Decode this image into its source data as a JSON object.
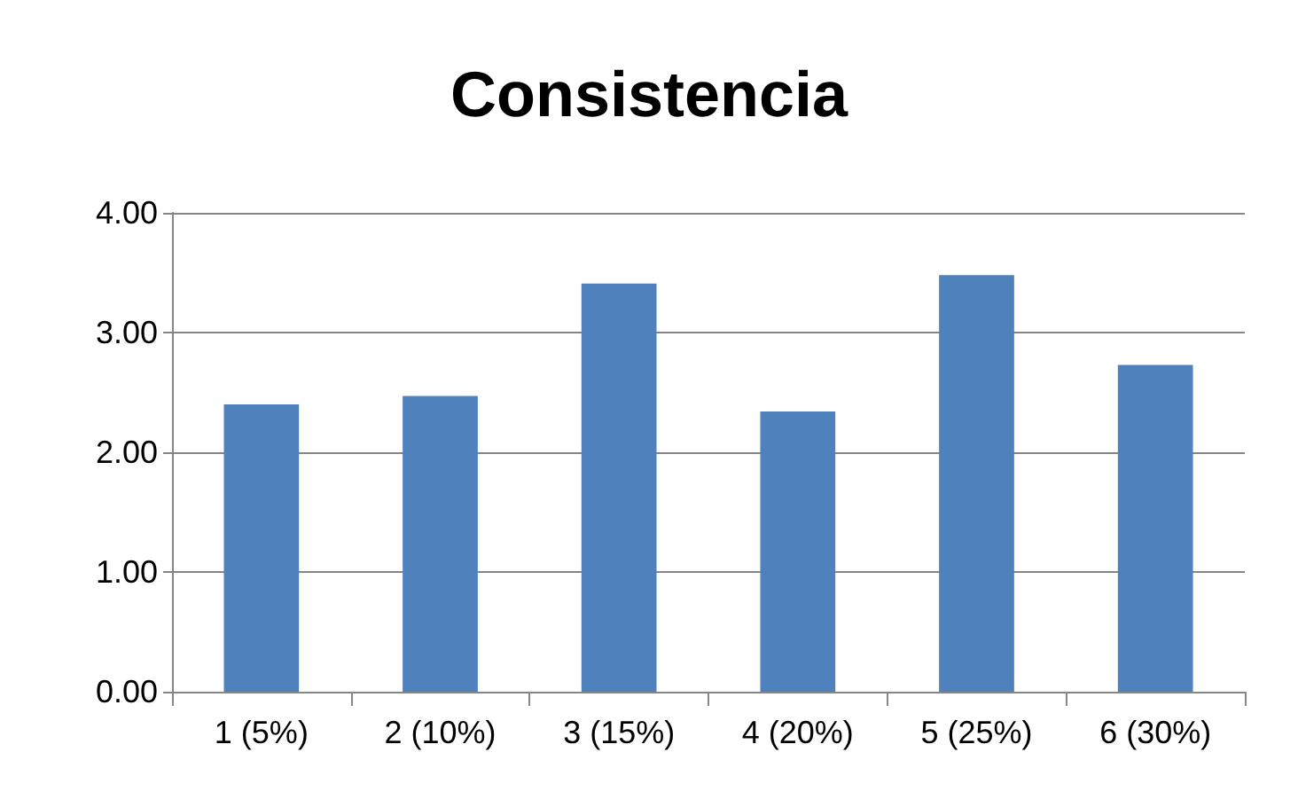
{
  "chart_data": {
    "type": "bar",
    "title": "Consistencia",
    "categories": [
      "1 (5%)",
      "2 (10%)",
      "3 (15%)",
      "4 (20%)",
      "5 (25%)",
      "6 (30%)"
    ],
    "values": [
      2.4,
      2.47,
      3.41,
      2.34,
      3.48,
      2.73
    ],
    "color": "#4f81bd",
    "ylim": [
      0,
      4
    ],
    "yticks": [
      {
        "value": 0,
        "label": "0.00"
      },
      {
        "value": 1,
        "label": "1.00"
      },
      {
        "value": 2,
        "label": "2.00"
      },
      {
        "value": 3,
        "label": "3.00"
      },
      {
        "value": 4,
        "label": "4.00"
      }
    ],
    "grid": "y"
  }
}
